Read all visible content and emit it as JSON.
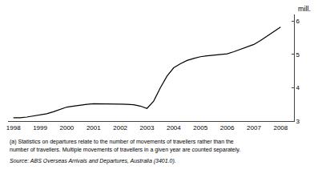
{
  "chart_data": {
    "type": "line",
    "x": [
      1998,
      1998.25,
      1998.5,
      1998.75,
      1999,
      1999.25,
      1999.5,
      1999.75,
      2000,
      2000.25,
      2000.5,
      2000.75,
      2001,
      2001.25,
      2001.5,
      2001.75,
      2002,
      2002.25,
      2002.5,
      2002.75,
      2003,
      2003.25,
      2003.5,
      2003.75,
      2004,
      2004.25,
      2004.5,
      2004.75,
      2005,
      2005.25,
      2005.5,
      2005.75,
      2006,
      2006.25,
      2006.5,
      2006.75,
      2007,
      2007.25,
      2007.5,
      2007.75,
      2008
    ],
    "values": [
      3.1,
      3.1,
      3.12,
      3.15,
      3.18,
      3.22,
      3.28,
      3.35,
      3.42,
      3.45,
      3.48,
      3.5,
      3.52,
      3.52,
      3.52,
      3.52,
      3.51,
      3.5,
      3.49,
      3.45,
      3.38,
      3.6,
      4.0,
      4.35,
      4.6,
      4.72,
      4.82,
      4.88,
      4.93,
      4.96,
      4.98,
      4.99,
      5.02,
      5.08,
      5.15,
      5.22,
      5.3,
      5.42,
      5.55,
      5.68,
      5.82
    ],
    "color": "#000000",
    "xlim": [
      1997.8,
      2008.5
    ],
    "xticks": [
      1998,
      1999,
      2000,
      2001,
      2002,
      2003,
      2004,
      2005,
      2006,
      2007,
      2008
    ],
    "ylim": [
      3.0,
      6.2
    ],
    "yticks": [
      3,
      4,
      5,
      6
    ],
    "ylabel": "mill.",
    "grid": false,
    "annotations": [
      "(a) Statistics on departures relate to the number of movements of travellers rather than the",
      "number of travellers. Multiple movements of travellers in a given year are counted separately.",
      "Source: ABS Overseas Arrivals and Departures, Australia (3401.0)."
    ]
  }
}
